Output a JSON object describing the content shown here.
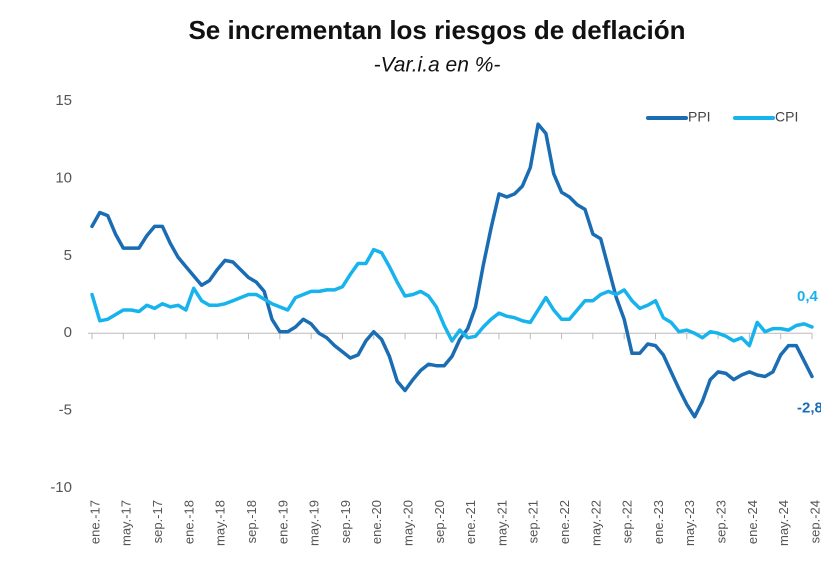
{
  "chart_data": {
    "type": "line",
    "title": "Se incrementan los riesgos de deflación",
    "subtitle": "-Var.i.a en %-",
    "categories": [
      "ene.-17",
      null,
      null,
      null,
      "may.-17",
      null,
      null,
      null,
      "sep.-17",
      null,
      null,
      null,
      "ene.-18",
      null,
      null,
      null,
      "may.-18",
      null,
      null,
      null,
      "sep.-18",
      null,
      null,
      null,
      "ene.-19",
      null,
      null,
      null,
      "may.-19",
      null,
      null,
      null,
      "sep.-19",
      null,
      null,
      null,
      "ene.-20",
      null,
      null,
      null,
      "may.-20",
      null,
      null,
      null,
      "sep.-20",
      null,
      null,
      null,
      "ene.-21",
      null,
      null,
      null,
      "may.-21",
      null,
      null,
      null,
      "sep.-21",
      null,
      null,
      null,
      "ene.-22",
      null,
      null,
      null,
      "may.-22",
      null,
      null,
      null,
      "sep.-22",
      null,
      null,
      null,
      "ene.-23",
      null,
      null,
      null,
      "may.-23",
      null,
      null,
      null,
      "sep.-23",
      null,
      null,
      null,
      "ene.-24",
      null,
      null,
      null,
      "may.-24",
      null,
      null,
      null,
      "sep.-24"
    ],
    "series": [
      {
        "name": "PPI",
        "color": "#1b6db3",
        "values": [
          6.9,
          7.8,
          7.6,
          6.4,
          5.5,
          5.5,
          5.5,
          6.3,
          6.9,
          6.9,
          5.8,
          4.9,
          4.3,
          3.7,
          3.1,
          3.4,
          4.1,
          4.7,
          4.6,
          4.1,
          3.6,
          3.3,
          2.7,
          0.9,
          0.1,
          0.1,
          0.4,
          0.9,
          0.6,
          0.0,
          -0.3,
          -0.8,
          -1.2,
          -1.6,
          -1.4,
          -0.5,
          0.1,
          -0.4,
          -1.5,
          -3.1,
          -3.7,
          -3.0,
          -2.4,
          -2.0,
          -2.1,
          -2.1,
          -1.5,
          -0.4,
          0.3,
          1.7,
          4.4,
          6.8,
          9.0,
          8.8,
          9.0,
          9.5,
          10.7,
          13.5,
          12.9,
          10.3,
          9.1,
          8.8,
          8.3,
          8.0,
          6.4,
          6.1,
          4.2,
          2.3,
          0.9,
          -1.3,
          -1.3,
          -0.7,
          -0.8,
          -1.4,
          -2.5,
          -3.6,
          -4.6,
          -5.4,
          -4.4,
          -3.0,
          -2.5,
          -2.6,
          -3.0,
          -2.7,
          -2.5,
          -2.7,
          -2.8,
          -2.5,
          -1.4,
          -0.8,
          -0.8,
          -1.8,
          -2.8
        ],
        "end_label": "-2,8"
      },
      {
        "name": "CPI",
        "color": "#16b3ec",
        "values": [
          2.5,
          0.8,
          0.9,
          1.2,
          1.5,
          1.5,
          1.4,
          1.8,
          1.6,
          1.9,
          1.7,
          1.8,
          1.5,
          2.9,
          2.1,
          1.8,
          1.8,
          1.9,
          2.1,
          2.3,
          2.5,
          2.5,
          2.2,
          1.9,
          1.7,
          1.5,
          2.3,
          2.5,
          2.7,
          2.7,
          2.8,
          2.8,
          3.0,
          3.8,
          4.5,
          4.5,
          5.4,
          5.2,
          4.3,
          3.3,
          2.4,
          2.5,
          2.7,
          2.4,
          1.7,
          0.5,
          -0.5,
          0.2,
          -0.3,
          -0.2,
          0.4,
          0.9,
          1.3,
          1.1,
          1.0,
          0.8,
          0.7,
          1.5,
          2.3,
          1.5,
          0.9,
          0.9,
          1.5,
          2.1,
          2.1,
          2.5,
          2.7,
          2.5,
          2.8,
          2.1,
          1.6,
          1.8,
          2.1,
          1.0,
          0.7,
          0.1,
          0.2,
          0.0,
          -0.3,
          0.1,
          0.0,
          -0.2,
          -0.5,
          -0.3,
          -0.8,
          0.7,
          0.1,
          0.3,
          0.3,
          0.2,
          0.5,
          0.6,
          0.4
        ],
        "end_label": "0,4"
      }
    ],
    "ylim": [
      -10,
      15
    ],
    "yticks": [
      15,
      10,
      5,
      0,
      -5,
      -10
    ],
    "legend": "top-right"
  }
}
